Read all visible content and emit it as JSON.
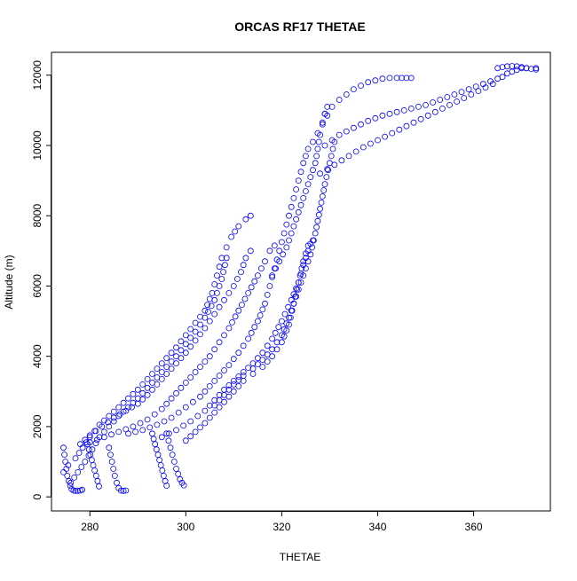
{
  "chart_data": {
    "type": "scatter",
    "title": "ORCAS RF17 THETAE",
    "xlabel": "THETAE",
    "ylabel": "Altitude (m)",
    "xlim": [
      272,
      376
    ],
    "ylim": [
      -400,
      12650
    ],
    "x_ticks": [
      280,
      300,
      320,
      340,
      360
    ],
    "y_ticks": [
      0,
      2000,
      4000,
      6000,
      8000,
      10000,
      12000
    ],
    "marker": "open-circle",
    "color": "#0000ff",
    "grid": false,
    "series": [
      {
        "x": [
          274.5,
          275.5,
          277.0,
          278.5,
          280.0,
          282.0,
          284.0,
          286.0,
          288.0,
          290.0,
          292.0,
          294.0,
          296.0,
          298.0,
          300.0,
          302.0,
          304.0,
          305.5,
          306.5,
          307.5,
          308.5,
          309.5,
          311.0,
          312.5,
          313.5
        ],
        "y": [
          700,
          900,
          1100,
          1400,
          1700,
          2050,
          2300,
          2550,
          2800,
          3050,
          3350,
          3650,
          3950,
          4250,
          4600,
          4950,
          5300,
          5800,
          6300,
          6800,
          7100,
          7400,
          7700,
          7900,
          8000
        ]
      },
      {
        "x": [
          276.0,
          277.5,
          279.0,
          280.5,
          282.0,
          284.0,
          286.0,
          288.0,
          290.0,
          292.0,
          294.0,
          296.0,
          298.0,
          300.0,
          302.0,
          304.0,
          306.0,
          307.5,
          308.5
        ],
        "y": [
          400,
          700,
          1000,
          1350,
          1700,
          2000,
          2300,
          2550,
          2800,
          3100,
          3400,
          3700,
          4000,
          4350,
          4700,
          5100,
          5600,
          6200,
          6800
        ]
      },
      {
        "x": [
          278.0,
          280.0,
          282.5,
          285.0,
          287.5,
          290.0,
          292.0,
          294.0,
          296.0,
          298.0,
          300.0,
          302.0,
          304.0,
          306.0,
          308.0,
          310.0,
          311.5,
          312.5,
          313.5
        ],
        "y": [
          1500,
          1750,
          2000,
          2250,
          2450,
          2650,
          2900,
          3200,
          3500,
          3800,
          4100,
          4450,
          4800,
          5200,
          5600,
          6000,
          6400,
          6800,
          7000
        ]
      },
      {
        "x": [
          280.0,
          283.0,
          286.0,
          289.0,
          292.0,
          295.0,
          297.0,
          299.0,
          301.0,
          303.0,
          305.0,
          307.0,
          309.0,
          311.0,
          313.0,
          315.0,
          316.5,
          317.5,
          318.5
        ],
        "y": [
          1550,
          1700,
          1850,
          2000,
          2200,
          2500,
          2800,
          3100,
          3400,
          3700,
          4000,
          4400,
          4800,
          5300,
          5800,
          6300,
          6700,
          7000,
          7150
        ]
      },
      {
        "x": [
          288.0,
          291.0,
          294.0,
          297.0,
          300.0,
          303.0,
          305.0,
          307.0,
          309.0,
          311.0,
          313.0,
          315.0,
          316.5,
          317.5,
          318.5,
          319.5,
          320.5,
          321.5,
          322.5,
          323.5,
          324.5,
          325.5,
          326.5,
          327.5,
          328.5,
          329.5
        ],
        "y": [
          1800,
          1900,
          2050,
          2250,
          2550,
          2850,
          3150,
          3450,
          3750,
          4100,
          4500,
          5000,
          5500,
          6000,
          6500,
          7000,
          7500,
          8000,
          8500,
          9000,
          9500,
          9900,
          10100,
          10350,
          10650,
          10850
        ]
      },
      {
        "x": [
          295.0,
          298.0,
          301.0,
          304.0,
          306.0,
          308.0,
          310.0,
          312.0,
          314.0,
          316.0,
          318.0,
          320.0,
          322.0,
          323.5,
          324.5,
          325.5,
          326.0,
          326.5
        ],
        "y": [
          1700,
          1900,
          2150,
          2450,
          2750,
          3050,
          3300,
          3550,
          3800,
          4100,
          4500,
          5000,
          5600,
          6100,
          6600,
          7000,
          7200,
          7300
        ]
      },
      {
        "x": [
          300.0,
          302.0,
          304.0,
          306.0,
          308.0,
          310.0,
          312.0,
          314.0,
          316.0,
          318.0,
          320.0,
          321.5,
          322.5,
          323.5,
          324.5,
          325.5
        ],
        "y": [
          1600,
          1850,
          2100,
          2400,
          2700,
          3000,
          3300,
          3500,
          3700,
          4000,
          4400,
          4900,
          5500,
          6100,
          6700,
          7150
        ]
      },
      {
        "x": [
          306.0,
          308.0,
          310.0,
          312.0,
          314.0,
          316.0,
          318.0,
          320.0,
          321.5,
          323.0,
          324.5,
          326.0,
          327.0,
          328.0,
          329.0,
          330.0,
          331.0
        ],
        "y": [
          2600,
          2900,
          3200,
          3450,
          3650,
          3900,
          4200,
          4600,
          5100,
          5700,
          6300,
          6900,
          7500,
          8200,
          8900,
          9500,
          10100
        ]
      },
      {
        "x": [
          318.0,
          319.5,
          321.0,
          322.0,
          323.0,
          324.0,
          325.0,
          326.0,
          327.0,
          327.5,
          328.0,
          328.5,
          329.0,
          329.5
        ],
        "y": [
          6300,
          6700,
          7100,
          7500,
          7900,
          8300,
          8700,
          9100,
          9500,
          9900,
          10300,
          10600,
          10900,
          11100
        ]
      },
      {
        "x": [
          274.5,
          274.7,
          274.9,
          275.1,
          275.3,
          275.6,
          275.9,
          276.2,
          276.6,
          277.0,
          277.5,
          278.0,
          278.4
        ],
        "y": [
          1400,
          1200,
          1000,
          800,
          600,
          450,
          320,
          220,
          180,
          170,
          170,
          180,
          200
        ]
      },
      {
        "x": [
          279.5,
          279.8,
          280.1,
          280.4,
          280.7,
          281.0,
          281.3,
          281.6,
          281.9
        ],
        "y": [
          1500,
          1350,
          1200,
          1050,
          900,
          750,
          600,
          450,
          300
        ]
      },
      {
        "x": [
          284.0,
          284.3,
          284.6,
          284.9,
          285.2,
          285.6,
          286.0,
          286.5,
          287.0,
          287.5
        ],
        "y": [
          1400,
          1200,
          1000,
          800,
          600,
          400,
          250,
          180,
          170,
          180
        ]
      },
      {
        "x": [
          293.0,
          293.3,
          293.6,
          293.9,
          294.2,
          294.5,
          294.8,
          295.1,
          295.4,
          295.7,
          296.0
        ],
        "y": [
          1800,
          1650,
          1500,
          1350,
          1200,
          1050,
          900,
          750,
          600,
          450,
          320
        ]
      },
      {
        "x": [
          296.0,
          296.4,
          296.8,
          297.2,
          297.6,
          298.0,
          298.4,
          298.8,
          299.2,
          299.6
        ],
        "y": [
          1800,
          1600,
          1400,
          1200,
          1000,
          800,
          650,
          500,
          400,
          330
        ]
      },
      {
        "x": [
          329.0,
          330.5,
          332.0,
          333.5,
          335.0,
          336.5,
          338.0,
          339.5,
          341.0,
          342.5,
          344.0,
          345.0,
          346.0,
          347.0
        ],
        "y": [
          10900,
          11100,
          11300,
          11450,
          11600,
          11700,
          11800,
          11850,
          11900,
          11920,
          11920,
          11920,
          11920,
          11920
        ]
      },
      {
        "x": [
          329.0,
          332.0,
          335.0,
          338.0,
          341.0,
          344.0,
          347.0,
          350.0,
          353.0,
          356.0,
          359.0,
          362.0,
          365.0,
          367.0,
          369.0,
          371.0,
          373.0
        ],
        "y": [
          10000,
          10300,
          10500,
          10700,
          10850,
          10950,
          11050,
          11150,
          11300,
          11450,
          11600,
          11750,
          11900,
          12050,
          12150,
          12200,
          12200
        ]
      },
      {
        "x": [
          328.0,
          331.0,
          334.0,
          337.0,
          340.0,
          343.0,
          346.0,
          349.0,
          352.0,
          355.0,
          358.0,
          361.0,
          364.0,
          366.0,
          368.0,
          370.0
        ],
        "y": [
          9200,
          9450,
          9700,
          9950,
          10150,
          10350,
          10550,
          10750,
          10950,
          11150,
          11350,
          11550,
          11750,
          11950,
          12100,
          12200
        ]
      },
      {
        "x": [
          365.0,
          366.0,
          367.0,
          368.0,
          369.0,
          370.0,
          371.0,
          372.0,
          373.0
        ],
        "y": [
          12200,
          12230,
          12250,
          12260,
          12250,
          12230,
          12200,
          12180,
          12160
        ]
      }
    ]
  }
}
